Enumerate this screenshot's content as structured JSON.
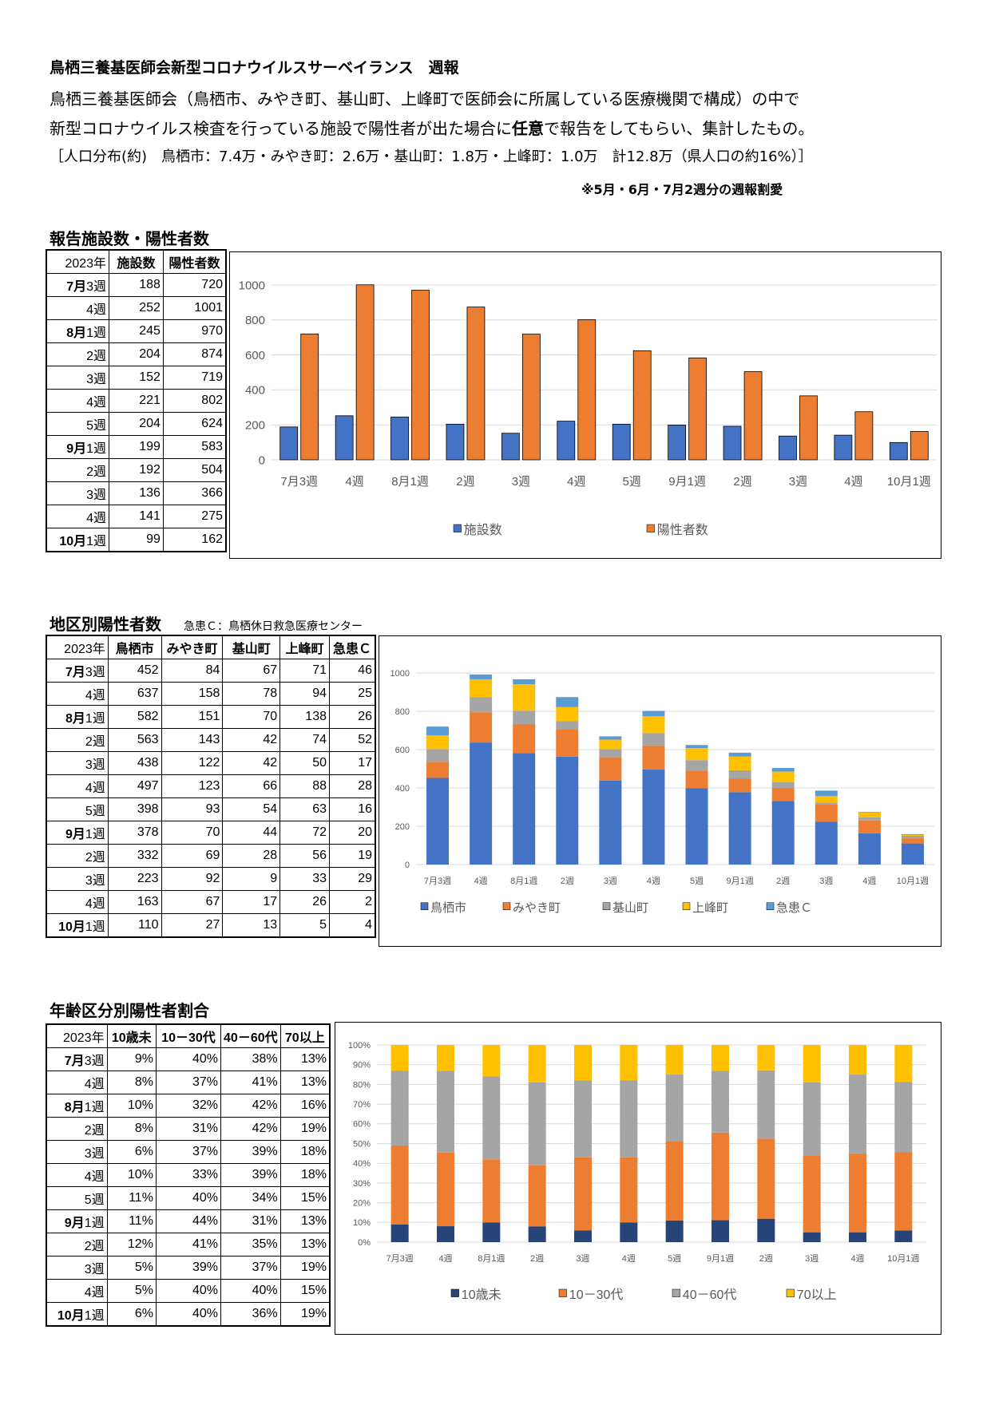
{
  "header": {
    "title": "鳥栖三養基医師会新型コロナウイルスサーベイランス　週報",
    "line1": "鳥栖三養基医師会（鳥栖市、みやき町、基山町、上峰町で医師会に所属している医療機関で構成）の中で",
    "line2a": "新型コロナウイルス検査を行っている施設で陽性者が出た場合に",
    "line2b": "任意",
    "line2c": "で報告をしてもらい、集計したもの。",
    "line3": "［人口分布(約)　鳥栖市：7.4万・みやき町：2.6万・基山町：1.8万・上峰町：1.0万　計12.8万（県人口の約16%）］",
    "note": "※5月・6月・7月2週分の週報割愛"
  },
  "weeks": [
    {
      "month": "7月",
      "wk": "3週"
    },
    {
      "month": "",
      "wk": "4週"
    },
    {
      "month": "8月",
      "wk": "1週"
    },
    {
      "month": "",
      "wk": "2週"
    },
    {
      "month": "",
      "wk": "3週"
    },
    {
      "month": "",
      "wk": "4週"
    },
    {
      "month": "",
      "wk": "5週"
    },
    {
      "month": "9月",
      "wk": "1週"
    },
    {
      "month": "",
      "wk": "2週"
    },
    {
      "month": "",
      "wk": "3週"
    },
    {
      "month": "",
      "wk": "4週"
    },
    {
      "month": "10月",
      "wk": "1週"
    }
  ],
  "section1": {
    "title": "報告施設数・陽性者数",
    "headers": [
      "2023年",
      "施設数",
      "陽性者数"
    ],
    "rows": [
      [
        188,
        720
      ],
      [
        252,
        1001
      ],
      [
        245,
        970
      ],
      [
        204,
        874
      ],
      [
        152,
        719
      ],
      [
        221,
        802
      ],
      [
        204,
        624
      ],
      [
        199,
        583
      ],
      [
        192,
        504
      ],
      [
        136,
        366
      ],
      [
        141,
        275
      ],
      [
        99,
        162
      ]
    ]
  },
  "section2": {
    "title": "地区別陽性者数",
    "subtitle": "急患Ｃ：鳥栖休日救急医療センター",
    "headers": [
      "2023年",
      "鳥栖市",
      "みやき町",
      "基山町",
      "上峰町",
      "急患Ｃ"
    ],
    "rows": [
      [
        452,
        84,
        67,
        71,
        46
      ],
      [
        637,
        158,
        78,
        94,
        25
      ],
      [
        582,
        151,
        70,
        138,
        26
      ],
      [
        563,
        143,
        42,
        74,
        52
      ],
      [
        438,
        122,
        42,
        50,
        17
      ],
      [
        497,
        123,
        66,
        88,
        28
      ],
      [
        398,
        93,
        54,
        63,
        16
      ],
      [
        378,
        70,
        44,
        72,
        20
      ],
      [
        332,
        69,
        28,
        56,
        19
      ],
      [
        223,
        92,
        9,
        33,
        29
      ],
      [
        163,
        67,
        17,
        26,
        2
      ],
      [
        110,
        27,
        13,
        5,
        4
      ]
    ]
  },
  "section3": {
    "title": "年齢区分別陽性者割合",
    "headers": [
      "2023年",
      "10歳未",
      "10－30代",
      "40－60代",
      "70以上"
    ],
    "rows": [
      [
        "9%",
        "40%",
        "38%",
        "13%"
      ],
      [
        "8%",
        "37%",
        "41%",
        "13%"
      ],
      [
        "10%",
        "32%",
        "42%",
        "16%"
      ],
      [
        "8%",
        "31%",
        "42%",
        "19%"
      ],
      [
        "6%",
        "37%",
        "39%",
        "18%"
      ],
      [
        "10%",
        "33%",
        "39%",
        "18%"
      ],
      [
        "11%",
        "40%",
        "34%",
        "15%"
      ],
      [
        "11%",
        "44%",
        "31%",
        "13%"
      ],
      [
        "12%",
        "41%",
        "35%",
        "13%"
      ],
      [
        "5%",
        "39%",
        "37%",
        "19%"
      ],
      [
        "5%",
        "40%",
        "40%",
        "15%"
      ],
      [
        "6%",
        "40%",
        "36%",
        "19%"
      ]
    ]
  },
  "chart_data": [
    {
      "type": "bar",
      "categories": [
        "7月3週",
        "4週",
        "8月1週",
        "2週",
        "3週",
        "4週",
        "5週",
        "9月1週",
        "2週",
        "3週",
        "4週",
        "10月1週"
      ],
      "series": [
        {
          "name": "施設数",
          "values": [
            188,
            252,
            245,
            204,
            152,
            221,
            204,
            199,
            192,
            136,
            141,
            99
          ],
          "color": "#4472C4"
        },
        {
          "name": "陽性者数",
          "values": [
            720,
            1001,
            970,
            874,
            719,
            802,
            624,
            583,
            504,
            366,
            275,
            162
          ],
          "color": "#ED7D31"
        }
      ],
      "ylim": [
        0,
        1000
      ],
      "yticks": [
        "0",
        "200",
        "400",
        "600",
        "800",
        "1000"
      ],
      "grid": true,
      "legend": "bottom"
    },
    {
      "type": "bar",
      "stacked": true,
      "categories": [
        "7月3週",
        "4週",
        "8月1週",
        "2週",
        "3週",
        "4週",
        "5週",
        "9月1週",
        "2週",
        "3週",
        "4週",
        "10月1週"
      ],
      "series": [
        {
          "name": "鳥栖市",
          "values": [
            452,
            637,
            582,
            563,
            438,
            497,
            398,
            378,
            332,
            223,
            163,
            110
          ],
          "color": "#4472C4"
        },
        {
          "name": "みやき町",
          "values": [
            84,
            158,
            151,
            143,
            122,
            123,
            93,
            70,
            69,
            92,
            67,
            27
          ],
          "color": "#ED7D31"
        },
        {
          "name": "基山町",
          "values": [
            67,
            78,
            70,
            42,
            42,
            66,
            54,
            44,
            28,
            9,
            17,
            13
          ],
          "color": "#A5A5A5"
        },
        {
          "name": "上峰町",
          "values": [
            71,
            94,
            138,
            74,
            50,
            88,
            63,
            72,
            56,
            33,
            26,
            5
          ],
          "color": "#FFC000"
        },
        {
          "name": "急患Ｃ",
          "values": [
            46,
            25,
            26,
            52,
            17,
            28,
            16,
            20,
            19,
            29,
            2,
            4
          ],
          "color": "#5B9BD5"
        }
      ],
      "ylim": [
        0,
        1000
      ],
      "yticks": [
        "0",
        "200",
        "400",
        "600",
        "800",
        "1000"
      ],
      "grid": true,
      "legend": "bottom"
    },
    {
      "type": "bar",
      "stacked": true,
      "percent": true,
      "categories": [
        "7月3週",
        "4週",
        "8月1週",
        "2週",
        "3週",
        "4週",
        "5週",
        "9月1週",
        "2週",
        "3週",
        "4週",
        "10月1週"
      ],
      "series": [
        {
          "name": "10歳未",
          "values": [
            9,
            8,
            10,
            8,
            6,
            10,
            11,
            11,
            12,
            5,
            5,
            6
          ],
          "color": "#264478"
        },
        {
          "name": "10－30代",
          "values": [
            40,
            37,
            32,
            31,
            37,
            33,
            40,
            44,
            41,
            39,
            40,
            40
          ],
          "color": "#ED7D31"
        },
        {
          "name": "40－60代",
          "values": [
            38,
            41,
            42,
            42,
            39,
            39,
            34,
            31,
            35,
            37,
            40,
            36
          ],
          "color": "#A5A5A5"
        },
        {
          "name": "70以上",
          "values": [
            13,
            13,
            16,
            19,
            18,
            18,
            15,
            13,
            13,
            19,
            15,
            19
          ],
          "color": "#FFC000"
        }
      ],
      "ylim": [
        0,
        100
      ],
      "yticks": [
        "0%",
        "10%",
        "20%",
        "30%",
        "40%",
        "50%",
        "60%",
        "70%",
        "80%",
        "90%",
        "100%"
      ],
      "grid": true,
      "legend": "bottom"
    }
  ]
}
